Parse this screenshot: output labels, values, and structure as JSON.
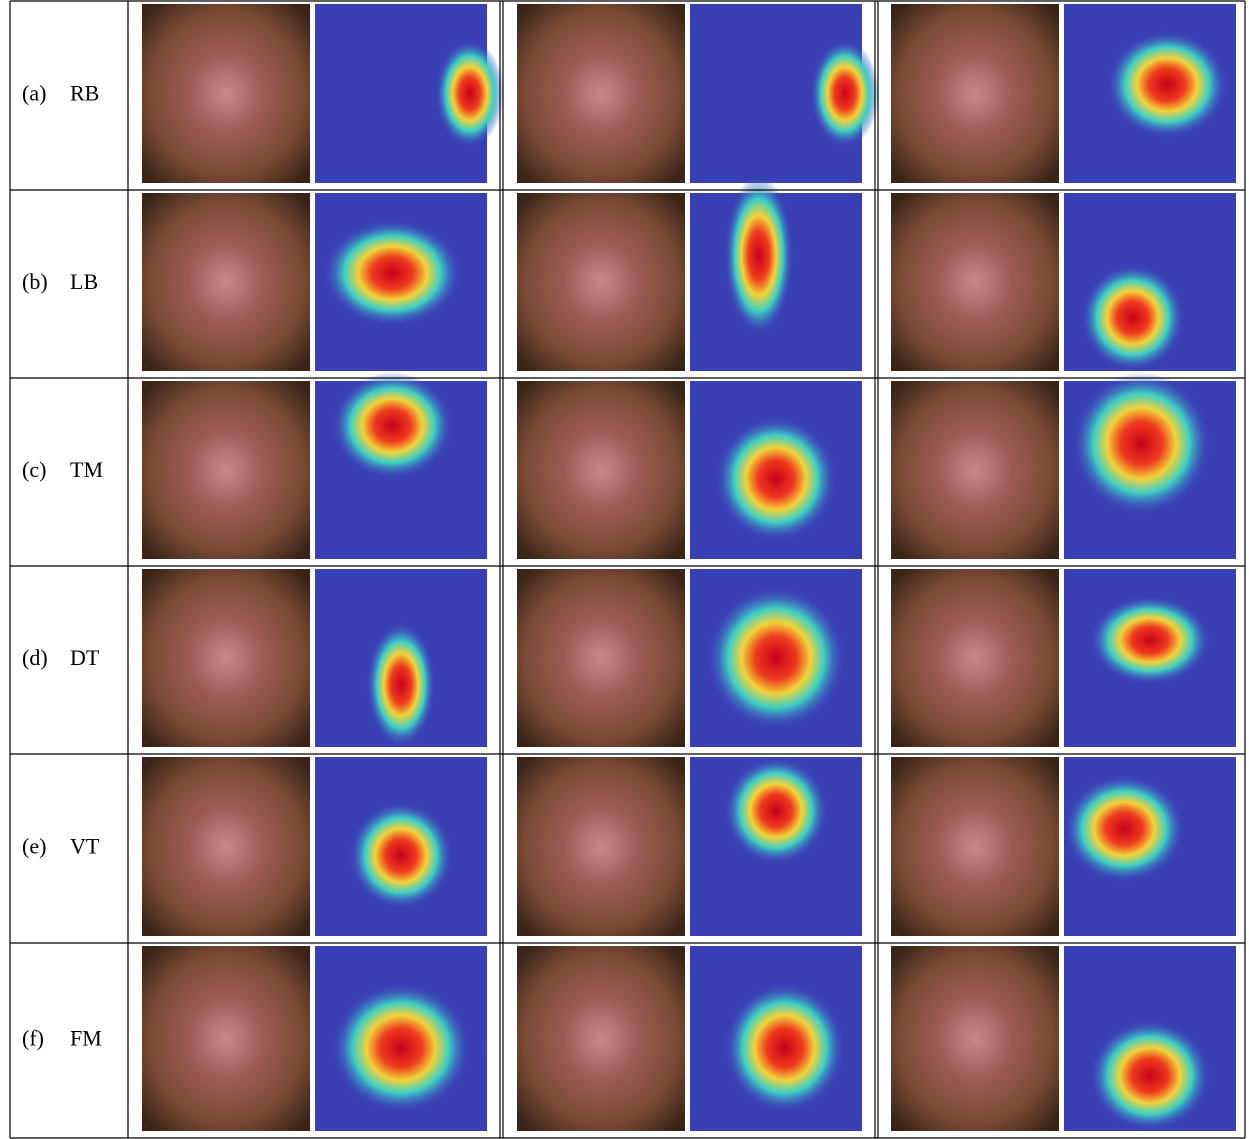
{
  "rows": [
    {
      "letter": "(a)",
      "code": "RB"
    },
    {
      "letter": "(b)",
      "code": "LB"
    },
    {
      "letter": "(c)",
      "code": "TM"
    },
    {
      "letter": "(d)",
      "code": "DT"
    },
    {
      "letter": "(e)",
      "code": "VT"
    },
    {
      "letter": "(f)",
      "code": "FM"
    }
  ]
}
